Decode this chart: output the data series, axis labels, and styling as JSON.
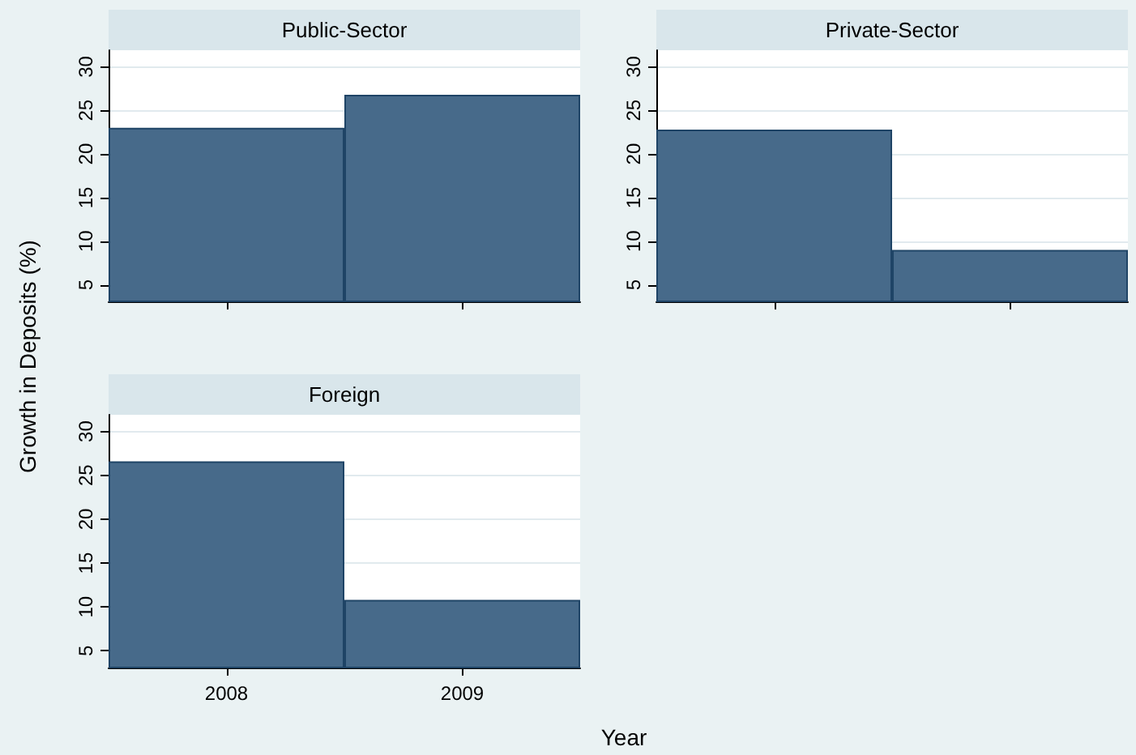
{
  "chart_data": [
    {
      "type": "bar",
      "title": "Public-Sector",
      "categories": [
        "2008",
        "2009"
      ],
      "series": [
        {
          "color": "#476a8a",
          "values": [
            23.0,
            26.8
          ]
        }
      ],
      "ylim": [
        3.1,
        31.9
      ],
      "yticks": [
        5,
        10,
        15,
        20,
        25,
        30
      ],
      "grid": "y",
      "tick_labels": "y"
    },
    {
      "type": "bar",
      "title": "Private-Sector",
      "categories": [
        null,
        null
      ],
      "series": [
        {
          "color": "#476a8a",
          "values": [
            22.8,
            9.0
          ]
        }
      ],
      "ylim": [
        3.1,
        31.9
      ],
      "yticks": [
        5,
        10,
        15,
        20,
        25,
        30
      ],
      "grid": "y",
      "tick_labels": "y"
    },
    {
      "type": "bar",
      "title": "Foreign",
      "categories": [
        "2008",
        "2009"
      ],
      "xlabel": "Year",
      "ylabel": "Growth in Deposits (%)",
      "series": [
        {
          "color": "#476a8a",
          "values": [
            26.6,
            10.8
          ]
        }
      ],
      "ylim": [
        3.1,
        31.9
      ],
      "yticks": [
        5,
        10,
        15,
        20,
        25,
        30
      ],
      "grid": "y"
    }
  ]
}
